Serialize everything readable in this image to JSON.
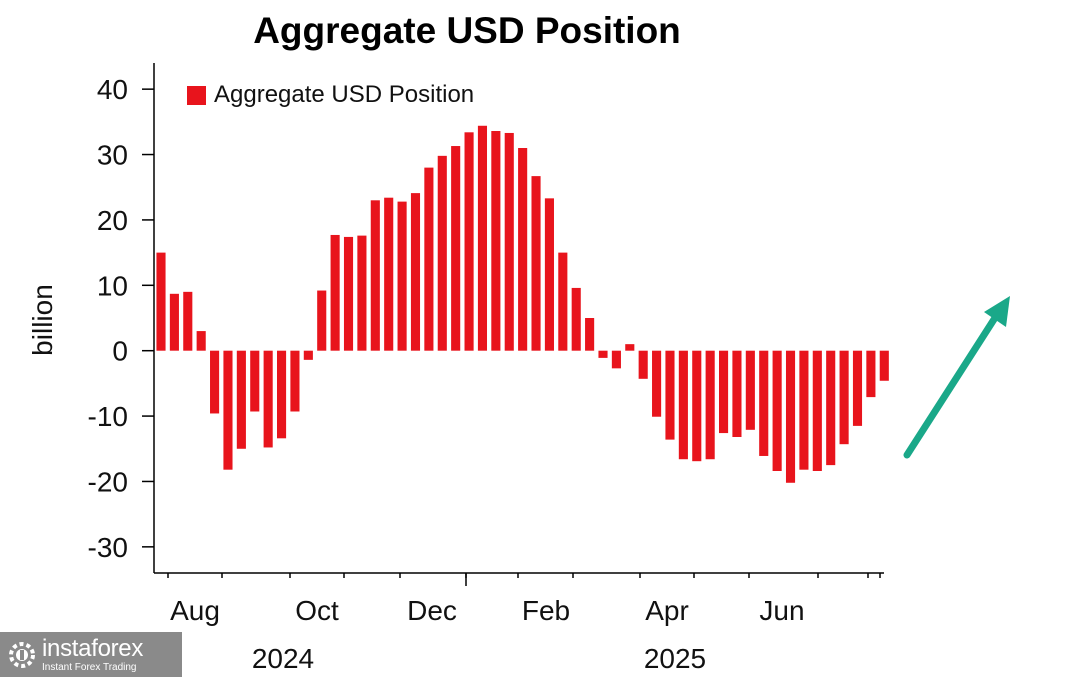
{
  "chart_data": {
    "type": "bar",
    "title": "Aggregate USD Position",
    "ylabel": "billion",
    "ylim": [
      -34,
      44
    ],
    "yticks": [
      40,
      30,
      20,
      10,
      0,
      -10,
      -20,
      -30
    ],
    "ytick_labels": [
      "40",
      "30",
      "20",
      "10",
      "0",
      "-10",
      "-20",
      "-30"
    ],
    "month_labels": [
      "Aug",
      "Oct",
      "Dec",
      "Feb",
      "Apr",
      "Jun"
    ],
    "year_labels": [
      "2024",
      "2025"
    ],
    "legend": "top-left",
    "color": "#e8141c",
    "series": [
      {
        "name": "Aggregate USD Position",
        "values": [
          15.0,
          8.7,
          9.0,
          3.0,
          -9.6,
          -18.2,
          -15.0,
          -9.3,
          -14.8,
          -13.4,
          -9.3,
          -1.4,
          9.2,
          17.7,
          17.4,
          17.6,
          23.0,
          23.4,
          22.8,
          24.1,
          28.0,
          29.8,
          31.3,
          33.4,
          34.4,
          33.6,
          33.3,
          31.0,
          26.7,
          23.3,
          15.0,
          9.6,
          5.0,
          -1.1,
          -2.7,
          1.0,
          -4.3,
          -10.1,
          -13.6,
          -16.6,
          -16.9,
          -16.6,
          -12.6,
          -13.2,
          -12.1,
          -16.1,
          -18.4,
          -20.2,
          -18.2,
          -18.4,
          -17.5,
          -14.3,
          -11.5,
          -7.1,
          -4.6
        ]
      }
    ]
  },
  "logo": {
    "name": "instaforex",
    "tagline": "Instant Forex Trading"
  }
}
